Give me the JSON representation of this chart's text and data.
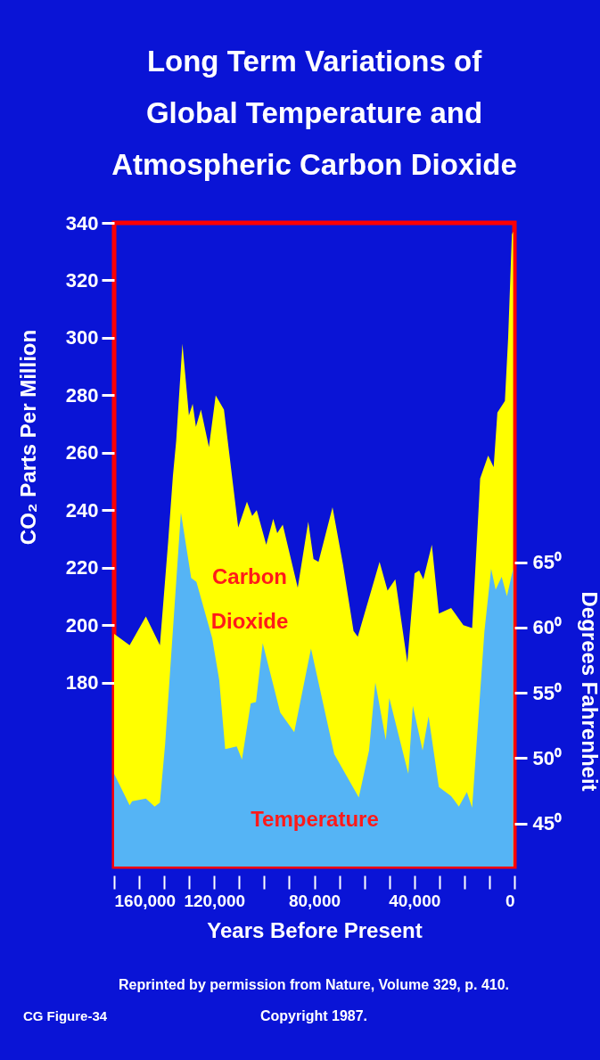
{
  "chart_data": {
    "type": "area",
    "title": [
      "Long Term Variations of",
      "Global Temperature and",
      "Atmospheric Carbon Dioxide"
    ],
    "xlabel": "Years Before Present",
    "ylabel": "CO₂ Parts Per Million",
    "y2label": "Degrees Fahrenheit",
    "xlim": [
      160000,
      0
    ],
    "xticks": [
      {
        "value": 160000,
        "label": "160,000"
      },
      {
        "value": 150000,
        "label": null
      },
      {
        "value": 140000,
        "label": null
      },
      {
        "value": 130000,
        "label": null
      },
      {
        "value": 120000,
        "label": "120,000"
      },
      {
        "value": 110000,
        "label": null
      },
      {
        "value": 100000,
        "label": null
      },
      {
        "value": 90000,
        "label": null
      },
      {
        "value": 80000,
        "label": "80,000"
      },
      {
        "value": 70000,
        "label": null
      },
      {
        "value": 60000,
        "label": null
      },
      {
        "value": 50000,
        "label": null
      },
      {
        "value": 40000,
        "label": "40,000"
      },
      {
        "value": 30000,
        "label": null
      },
      {
        "value": 20000,
        "label": null
      },
      {
        "value": 10000,
        "label": null
      },
      {
        "value": 0,
        "label": "0"
      }
    ],
    "ylim": [
      116,
      340
    ],
    "yticks": [
      180,
      200,
      220,
      240,
      260,
      280,
      300,
      320,
      340
    ],
    "y2lim": [
      41.7,
      91
    ],
    "y2ticks": [
      {
        "value": 45,
        "label": "45⁰"
      },
      {
        "value": 50,
        "label": "50⁰"
      },
      {
        "value": 55,
        "label": "55⁰"
      },
      {
        "value": 60,
        "label": "60⁰"
      },
      {
        "value": 65,
        "label": "65⁰"
      }
    ],
    "series": [
      {
        "name": "Carbon Dioxide",
        "color": "#ffff00",
        "x": [
          160000,
          153800,
          147300,
          141700,
          138400,
          136500,
          135200,
          132700,
          130100,
          128600,
          127300,
          125300,
          122100,
          119400,
          116100,
          110400,
          106900,
          104800,
          103000,
          99200,
          96400,
          94800,
          92600,
          86600,
          82400,
          80300,
          78300,
          72700,
          68500,
          64300,
          62600,
          53900,
          50700,
          47600,
          42800,
          39900,
          38100,
          36400,
          33000,
          30200,
          25300,
          20400,
          16900,
          14100,
          13700,
          10500,
          8300,
          6800,
          3800,
          2500,
          1000,
          500
        ],
        "values": [
          197,
          193,
          203,
          193,
          229,
          252,
          264,
          298,
          273,
          277,
          269,
          275,
          262,
          280,
          275,
          234,
          243,
          238,
          240,
          228,
          237,
          232,
          235,
          213,
          236,
          223,
          222,
          241,
          221,
          198,
          196,
          222,
          212,
          216,
          187,
          218,
          219,
          216,
          228,
          204,
          206,
          200,
          199,
          244,
          251,
          259,
          255,
          274,
          278,
          300,
          336,
          337
        ]
      },
      {
        "name": "Temperature",
        "color": "#55b4f5",
        "axis": "y2",
        "x": [
          160000,
          153800,
          152800,
          147300,
          143800,
          141700,
          139600,
          133300,
          129200,
          127100,
          120800,
          118000,
          115600,
          111000,
          108900,
          105400,
          103300,
          100600,
          93600,
          88000,
          81300,
          72000,
          62200,
          58100,
          55600,
          51400,
          50000,
          42400,
          40600,
          36700,
          34300,
          30200,
          25300,
          22200,
          19000,
          16900,
          12000,
          9300,
          7500,
          5100,
          3000,
          500
        ],
        "values": [
          48.8,
          46.4,
          46.7,
          46.9,
          46.3,
          46.6,
          51.1,
          68.8,
          63.8,
          63.5,
          59.2,
          56.0,
          50.7,
          50.9,
          49.9,
          54.2,
          54.3,
          58.8,
          53.5,
          52.0,
          58.4,
          50.3,
          47.0,
          50.6,
          55.8,
          51.4,
          54.6,
          48.8,
          54.0,
          50.6,
          53.2,
          47.8,
          47.1,
          46.3,
          47.4,
          46.2,
          59.7,
          64.5,
          62.9,
          63.9,
          62.4,
          64.5
        ]
      }
    ],
    "annotations": [
      "Reprinted by permission from Nature, Volume 329, p. 410.",
      "Copyright 1987.",
      "CG Figure-34"
    ],
    "grid": false
  }
}
